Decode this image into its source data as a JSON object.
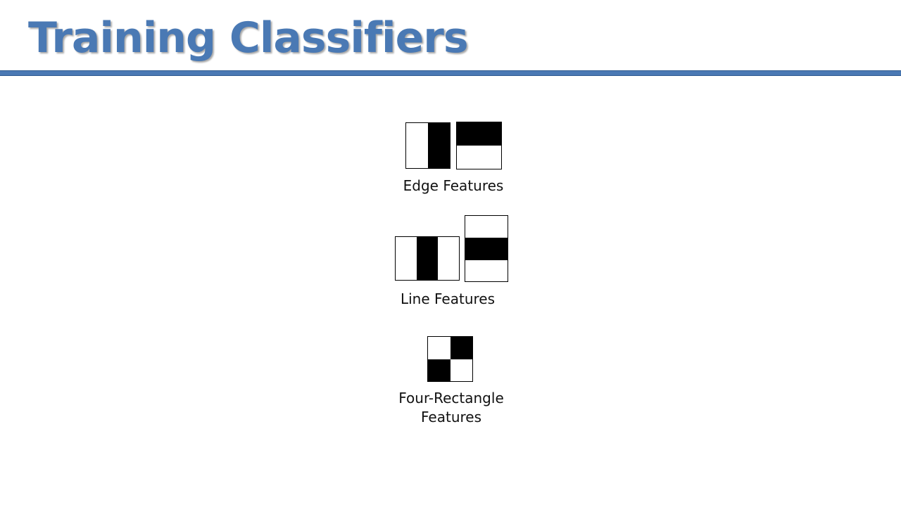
{
  "slide": {
    "title": "Training Classifiers",
    "accent_color": "#4a79b4"
  },
  "features": {
    "edge": {
      "caption": "Edge Features"
    },
    "line": {
      "caption": "Line Features"
    },
    "four_rectangle": {
      "caption_line1": "Four-Rectangle",
      "caption_line2": "Features"
    }
  }
}
